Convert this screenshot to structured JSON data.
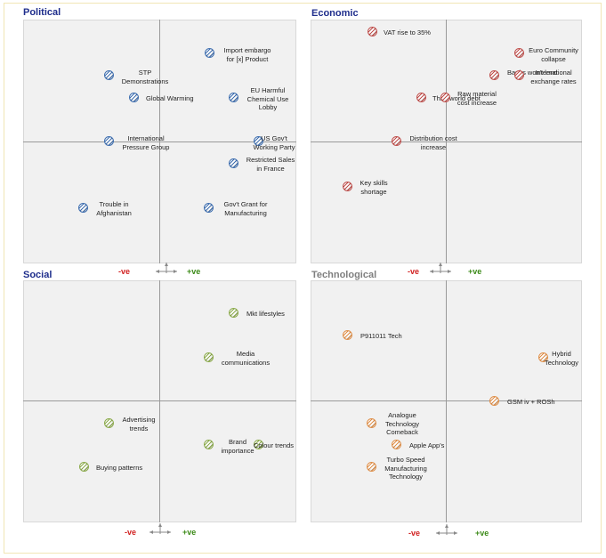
{
  "colors": {
    "political": "#3f6fb0",
    "economic": "#c0504d",
    "social": "#8cab4c",
    "technological": "#e0904a",
    "title_blue": "#1f2e8c",
    "title_grey": "#7f7f7f"
  },
  "quadrants": {
    "political": {
      "title": "Political"
    },
    "economic": {
      "title": "Economic"
    },
    "social": {
      "title": "Social"
    },
    "technological": {
      "title": "Technological"
    }
  },
  "scale": {
    "negative": "-ve",
    "positive": "+ve"
  },
  "items": {
    "political": [
      {
        "label": "Import embargo for [x] Product"
      },
      {
        "label": "STP Demonstrations"
      },
      {
        "label": "Global Warming"
      },
      {
        "label": "EU Harmful Chemical Use Lobby"
      },
      {
        "label": "International Pressure Group"
      },
      {
        "label": "US Gov't Working Party"
      },
      {
        "label": "Restricted Sales in France"
      },
      {
        "label": "Trouble in Afghanistan"
      },
      {
        "label": "Gov't Grant for Manufacturing"
      }
    ],
    "economic": [
      {
        "label": "VAT rise to 35%"
      },
      {
        "label": "Euro Community collapse"
      },
      {
        "label": "Banks won't lend"
      },
      {
        "label": "International exchange rates"
      },
      {
        "label": "Third world debt"
      },
      {
        "label": "Raw material cost increase"
      },
      {
        "label": "Distribution cost increase"
      },
      {
        "label": "Key skills shortage"
      }
    ],
    "social": [
      {
        "label": "Mkt lifestyles"
      },
      {
        "label": "Media communications"
      },
      {
        "label": "Advertising trends"
      },
      {
        "label": "Brand importance"
      },
      {
        "label": "Colour trends"
      },
      {
        "label": "Buying patterns"
      }
    ],
    "technological": [
      {
        "label": "P911011 Tech"
      },
      {
        "label": "Hybrid Technology"
      },
      {
        "label": "GSM iv + ROSh"
      },
      {
        "label": "Analogue Technology Comeback"
      },
      {
        "label": "Apple App's"
      },
      {
        "label": "Turbo Speed Manufacturing Technology"
      }
    ]
  }
}
